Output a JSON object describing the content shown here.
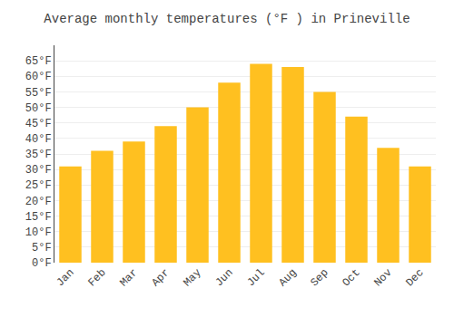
{
  "chart_data": {
    "type": "bar",
    "title": "Average monthly temperatures (°F ) in Prineville",
    "categories": [
      "Jan",
      "Feb",
      "Mar",
      "Apr",
      "May",
      "Jun",
      "Jul",
      "Aug",
      "Sep",
      "Oct",
      "Nov",
      "Dec"
    ],
    "values": [
      31,
      36,
      39,
      44,
      50,
      58,
      64,
      63,
      55,
      47,
      37,
      31
    ],
    "color": "#FFC020",
    "ylim": [
      0,
      70
    ],
    "yticks": [
      {
        "value": 0,
        "label": "0°F"
      },
      {
        "value": 5,
        "label": "5°F"
      },
      {
        "value": 10,
        "label": "10°F"
      },
      {
        "value": 15,
        "label": "15°F"
      },
      {
        "value": 20,
        "label": "20°F"
      },
      {
        "value": 25,
        "label": "25°F"
      },
      {
        "value": 30,
        "label": "30°F"
      },
      {
        "value": 35,
        "label": "35°F"
      },
      {
        "value": 40,
        "label": "40°F"
      },
      {
        "value": 45,
        "label": "45°F"
      },
      {
        "value": 50,
        "label": "50°F"
      },
      {
        "value": 55,
        "label": "55°F"
      },
      {
        "value": 60,
        "label": "60°F"
      },
      {
        "value": 65,
        "label": "65°F"
      }
    ],
    "grid": true
  }
}
